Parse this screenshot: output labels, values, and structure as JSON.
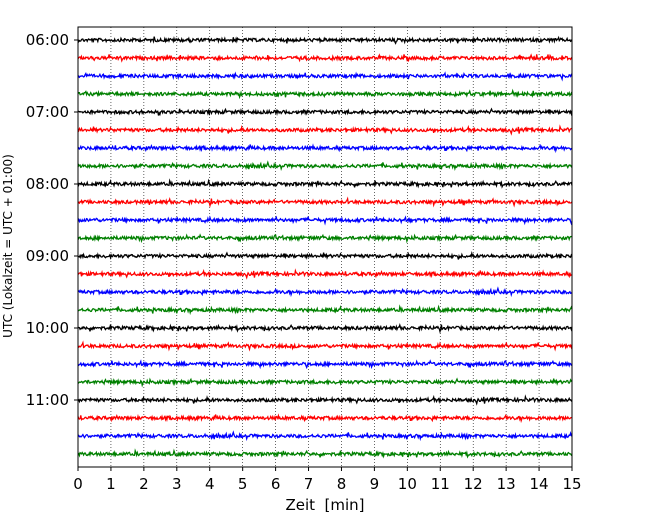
{
  "chart_data": {
    "type": "line",
    "title": "",
    "xlabel": "Zeit  [min]",
    "ylabel": "UTC (Lokalzeit = UTC + 01:00)",
    "xlim": [
      0,
      15
    ],
    "x_ticks": [
      "0",
      "1",
      "2",
      "3",
      "4",
      "5",
      "6",
      "7",
      "8",
      "9",
      "10",
      "11",
      "12",
      "13",
      "14",
      "15"
    ],
    "y_ticks": [
      "06:00",
      "07:00",
      "08:00",
      "09:00",
      "10:00",
      "11:00"
    ],
    "grid": "vertical dotted lines at each minute",
    "trace_interval_minutes": 15,
    "trace_count": 24,
    "trace_start": "06:00",
    "trace_colors": [
      "#000000",
      "#ff0000",
      "#0000ff",
      "#008000"
    ],
    "series": [
      {
        "start": "06:00"
      },
      {
        "start": "06:15"
      },
      {
        "start": "06:30"
      },
      {
        "start": "06:45"
      },
      {
        "start": "07:00"
      },
      {
        "start": "07:15"
      },
      {
        "start": "07:30"
      },
      {
        "start": "07:45"
      },
      {
        "start": "08:00"
      },
      {
        "start": "08:15"
      },
      {
        "start": "08:30"
      },
      {
        "start": "08:45"
      },
      {
        "start": "09:00"
      },
      {
        "start": "09:15"
      },
      {
        "start": "09:30"
      },
      {
        "start": "09:45"
      },
      {
        "start": "10:00"
      },
      {
        "start": "10:15"
      },
      {
        "start": "10:30"
      },
      {
        "start": "10:45"
      },
      {
        "start": "11:00"
      },
      {
        "start": "11:15"
      },
      {
        "start": "11:30"
      },
      {
        "start": "11:45"
      }
    ]
  }
}
